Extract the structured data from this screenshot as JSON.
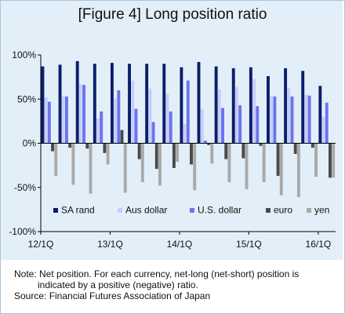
{
  "title": "[Figure 4] Long position ratio",
  "note": {
    "line1": "Note: Net position. For each currency, net-long (net-short) position is",
    "line2": "indicated by a positive (negative) ratio.",
    "source": "Source: Financial Futures Association of Japan"
  },
  "chart_data": {
    "type": "bar",
    "title": "[Figure 4] Long position ratio",
    "xlabel": "",
    "ylabel": "",
    "ylim": [
      -100,
      100
    ],
    "yticks": [
      -100,
      -50,
      0,
      50,
      100
    ],
    "ytick_labels": [
      "-100%",
      "-50%",
      "0%",
      "50%",
      "100%"
    ],
    "xtick_labels": [
      {
        "label": "12/1Q",
        "index": 0
      },
      {
        "label": "13/1Q",
        "index": 4
      },
      {
        "label": "14/1Q",
        "index": 8
      },
      {
        "label": "15/1Q",
        "index": 12
      },
      {
        "label": "16/1Q",
        "index": 16
      }
    ],
    "categories": [
      "12/1Q",
      "12/2Q",
      "12/3Q",
      "12/4Q",
      "13/1Q",
      "13/2Q",
      "13/3Q",
      "13/4Q",
      "14/1Q",
      "14/2Q",
      "14/3Q",
      "14/4Q",
      "15/1Q",
      "15/2Q",
      "15/3Q",
      "15/4Q",
      "16/1Q"
    ],
    "legend_position": "inside-lower",
    "series": [
      {
        "name": "SA rand",
        "color": "#0a1f6b",
        "values": [
          87,
          89,
          93,
          90,
          91,
          90,
          90,
          90,
          86,
          92,
          87,
          85,
          86,
          76,
          85,
          82,
          65
        ]
      },
      {
        "name": "Aus dollar",
        "color": "#c7cdf7",
        "values": [
          52,
          53,
          67,
          28,
          51,
          71,
          62,
          56,
          22,
          39,
          61,
          64,
          73,
          53,
          63,
          55,
          30
        ]
      },
      {
        "name": "U.S. dollar",
        "color": "#6a74ee",
        "values": [
          47,
          53,
          66,
          36,
          60,
          39,
          24,
          36,
          71,
          3,
          40,
          43,
          42,
          53,
          53,
          54,
          46
        ]
      },
      {
        "name": "euro",
        "color": "#4a4a4a",
        "values": [
          -9,
          -5,
          -6,
          -11,
          15,
          -18,
          -29,
          -28,
          -24,
          -2,
          -18,
          -17,
          -3,
          -37,
          -12,
          -5,
          -39
        ]
      },
      {
        "name": "yen",
        "color": "#a9a9a9",
        "values": [
          -37,
          -47,
          -57,
          -24,
          -56,
          -44,
          -48,
          -21,
          -53,
          -23,
          -44,
          -52,
          -44,
          -59,
          -61,
          -38,
          -39
        ]
      }
    ]
  }
}
